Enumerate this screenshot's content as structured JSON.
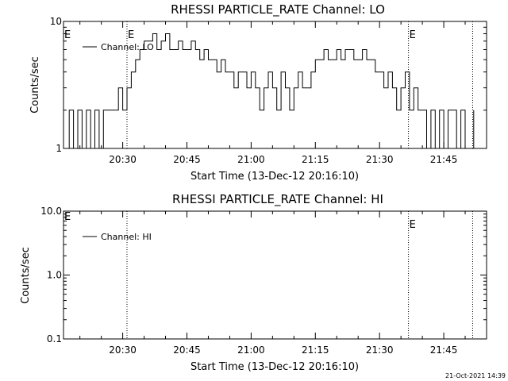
{
  "footer": {
    "timestamp": "21-Oct-2021 14:39"
  },
  "chart_data": [
    {
      "type": "line",
      "title": "RHESSI PARTICLE_RATE Channel: LO",
      "xlabel": "Start Time (13-Dec-12 20:16:10)",
      "ylabel": "Counts/sec",
      "yscale": "log",
      "ylim": [
        1,
        10
      ],
      "ytick_labels": [
        "1",
        "10"
      ],
      "ytick_values": [
        1,
        10
      ],
      "xlim": [
        "20:16:10",
        "21:55:00"
      ],
      "xtick_labels": [
        "20:30",
        "20:45",
        "21:00",
        "21:15",
        "21:30",
        "21:45"
      ],
      "xtick_values": [
        "20:30",
        "20:45",
        "21:00",
        "21:15",
        "21:30",
        "21:45"
      ],
      "event_markers": [
        {
          "time": "20:31:00",
          "label": "E"
        },
        {
          "time": "21:36:45",
          "label": "E"
        },
        {
          "time": "21:51:45",
          "label": ""
        }
      ],
      "left_marker_label": "E",
      "grid": false,
      "legend_position": "upper-left",
      "series": [
        {
          "name": "Channel: LO",
          "x": [
            "20:16:30",
            "20:17:30",
            "20:18:30",
            "20:19:30",
            "20:20:30",
            "20:21:30",
            "20:22:30",
            "20:23:30",
            "20:24:30",
            "20:25:30",
            "20:26:30",
            "20:27:00",
            "20:28:00",
            "20:29:00",
            "20:30:00",
            "20:31:00",
            "20:32:00",
            "20:33:00",
            "20:34:00",
            "20:35:00",
            "20:36:00",
            "20:37:00",
            "20:38:00",
            "20:39:00",
            "20:40:00",
            "20:41:00",
            "20:42:00",
            "20:43:00",
            "20:44:00",
            "20:45:00",
            "20:46:00",
            "20:47:00",
            "20:48:00",
            "20:49:00",
            "20:50:00",
            "20:51:00",
            "20:52:00",
            "20:53:00",
            "20:54:00",
            "20:55:00",
            "20:56:00",
            "20:57:00",
            "20:58:00",
            "20:59:00",
            "21:00:00",
            "21:01:00",
            "21:02:00",
            "21:03:00",
            "21:04:00",
            "21:05:00",
            "21:06:00",
            "21:07:00",
            "21:08:00",
            "21:09:00",
            "21:10:00",
            "21:11:00",
            "21:12:00",
            "21:13:00",
            "21:14:00",
            "21:15:00",
            "21:16:00",
            "21:17:00",
            "21:18:00",
            "21:19:00",
            "21:20:00",
            "21:21:00",
            "21:22:00",
            "21:23:00",
            "21:24:00",
            "21:25:00",
            "21:26:00",
            "21:27:00",
            "21:28:00",
            "21:29:00",
            "21:30:00",
            "21:31:00",
            "21:32:00",
            "21:33:00",
            "21:34:00",
            "21:35:00",
            "21:36:00",
            "21:37:00",
            "21:38:00",
            "21:39:00",
            "21:40:00",
            "21:41:00",
            "21:42:00",
            "21:43:00",
            "21:44:00",
            "21:45:00",
            "21:46:00",
            "21:47:00",
            "21:48:00",
            "21:49:00",
            "21:50:00",
            "21:51:00",
            "21:52:00"
          ],
          "y": [
            1,
            2,
            1,
            2,
            1,
            2,
            1,
            2,
            1,
            2,
            2,
            2,
            2,
            3,
            2,
            3,
            4,
            5,
            6,
            7,
            7,
            8,
            6,
            7,
            8,
            6,
            6,
            7,
            6,
            6,
            7,
            6,
            5,
            6,
            5,
            5,
            4,
            5,
            4,
            4,
            3,
            4,
            4,
            3,
            4,
            3,
            2,
            3,
            4,
            3,
            2,
            4,
            3,
            2,
            3,
            4,
            3,
            3,
            4,
            5,
            5,
            6,
            5,
            5,
            6,
            5,
            6,
            6,
            5,
            5,
            6,
            5,
            5,
            4,
            4,
            3,
            4,
            3,
            2,
            3,
            4,
            2,
            3,
            2,
            2,
            1,
            2,
            1,
            2,
            1,
            2,
            2,
            1,
            2,
            1,
            1,
            2
          ],
          "color": "#000000"
        }
      ]
    },
    {
      "type": "line",
      "title": "RHESSI PARTICLE_RATE Channel: HI",
      "xlabel": "Start Time (13-Dec-12 20:16:10)",
      "ylabel": "Counts/sec",
      "yscale": "log",
      "ylim": [
        0.1,
        10
      ],
      "ytick_labels": [
        "0.1",
        "1.0",
        "10.0"
      ],
      "ytick_values": [
        0.1,
        1.0,
        10.0
      ],
      "xlim": [
        "20:16:10",
        "21:55:00"
      ],
      "xtick_labels": [
        "20:30",
        "20:45",
        "21:00",
        "21:15",
        "21:30",
        "21:45"
      ],
      "xtick_values": [
        "20:30",
        "20:45",
        "21:00",
        "21:15",
        "21:30",
        "21:45"
      ],
      "event_markers": [
        {
          "time": "20:31:00",
          "label": ""
        },
        {
          "time": "21:36:45",
          "label": "E"
        },
        {
          "time": "21:51:45",
          "label": ""
        }
      ],
      "left_marker_label": "E",
      "grid": false,
      "legend_position": "upper-left",
      "series": [
        {
          "name": "Channel: HI",
          "x": [],
          "y": [],
          "color": "#000000"
        }
      ]
    }
  ]
}
